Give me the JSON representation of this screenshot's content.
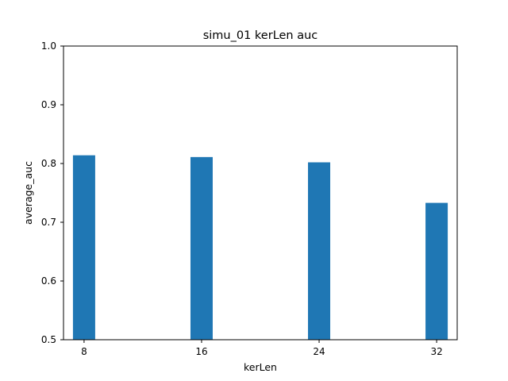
{
  "chart_data": {
    "type": "bar",
    "title": "simu_01 kerLen auc",
    "xlabel": "kerLen",
    "ylabel": "average_auc",
    "categories": [
      "8",
      "16",
      "24",
      "32"
    ],
    "x": [
      8,
      16,
      24,
      32
    ],
    "values": [
      0.814,
      0.811,
      0.802,
      0.733
    ],
    "xlim": [
      6.6,
      33.4
    ],
    "ylim": [
      0.5,
      1.0
    ],
    "yticks": [
      "0.5",
      "0.6",
      "0.7",
      "0.8",
      "0.9",
      "1.0"
    ],
    "bar_color": "#1f77b4",
    "grid": false
  }
}
